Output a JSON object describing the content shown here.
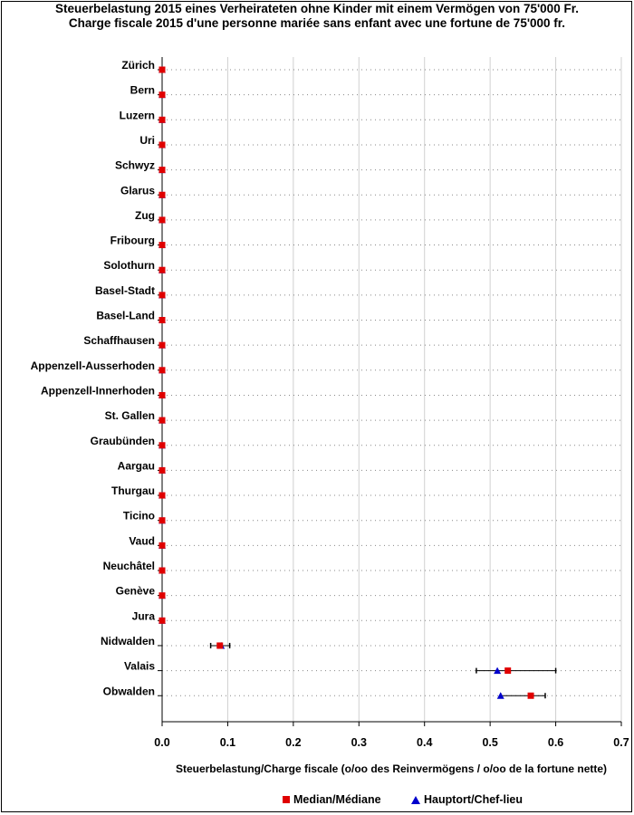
{
  "chart_data": {
    "type": "scatter",
    "title": "Steuerbelastung 2015 eines Verheirateten ohne Kinder mit einem Vermögen von 75'000 Fr.",
    "subtitle": "Charge fiscale 2015 d'une personne mariée sans enfant avec une fortune de 75'000 fr.",
    "xlabel": "Steuerbelastung/Charge fiscale (o/oo des Reinvermögens / o/oo de la fortune nette)",
    "xlim": [
      0.0,
      0.7
    ],
    "xticks": [
      "0.0",
      "0.1",
      "0.2",
      "0.3",
      "0.4",
      "0.5",
      "0.6",
      "0.7"
    ],
    "grid": true,
    "legend_position": "bottom-center",
    "categories": [
      "Zürich",
      "Bern",
      "Luzern",
      "Uri",
      "Schwyz",
      "Glarus",
      "Zug",
      "Fribourg",
      "Solothurn",
      "Basel-Stadt",
      "Basel-Land",
      "Schaffhausen",
      "Appenzell-Ausserhoden",
      "Appenzell-Innerhoden",
      "St. Gallen",
      "Graubünden",
      "Aargau",
      "Thurgau",
      "Ticino",
      "Vaud",
      "Neuchâtel",
      "Genève",
      "Jura",
      "Nidwalden",
      "Valais",
      "Obwalden"
    ],
    "series": [
      {
        "name": "Median/Médiane",
        "marker": "square",
        "color": "#e00000",
        "values": [
          0,
          0,
          0,
          0,
          0,
          0,
          0,
          0,
          0,
          0,
          0,
          0,
          0,
          0,
          0,
          0,
          0,
          0,
          0,
          0,
          0,
          0,
          0,
          0.088,
          0.527,
          0.562
        ]
      },
      {
        "name": "Hauptort/Chef-lieu",
        "marker": "triangle",
        "color": "#0000cc",
        "values": [
          0,
          0,
          0,
          0,
          0,
          0,
          0,
          0,
          0,
          0,
          0,
          0,
          0,
          0,
          0,
          0,
          0,
          0,
          0,
          0,
          0,
          0,
          0,
          0.09,
          0.511,
          0.516
        ]
      }
    ],
    "ranges": [
      {
        "category": "Nidwalden",
        "min": 0.074,
        "max": 0.103
      },
      {
        "category": "Valais",
        "min": 0.479,
        "max": 0.6
      },
      {
        "category": "Obwalden",
        "min": 0.516,
        "max": 0.584
      }
    ]
  }
}
